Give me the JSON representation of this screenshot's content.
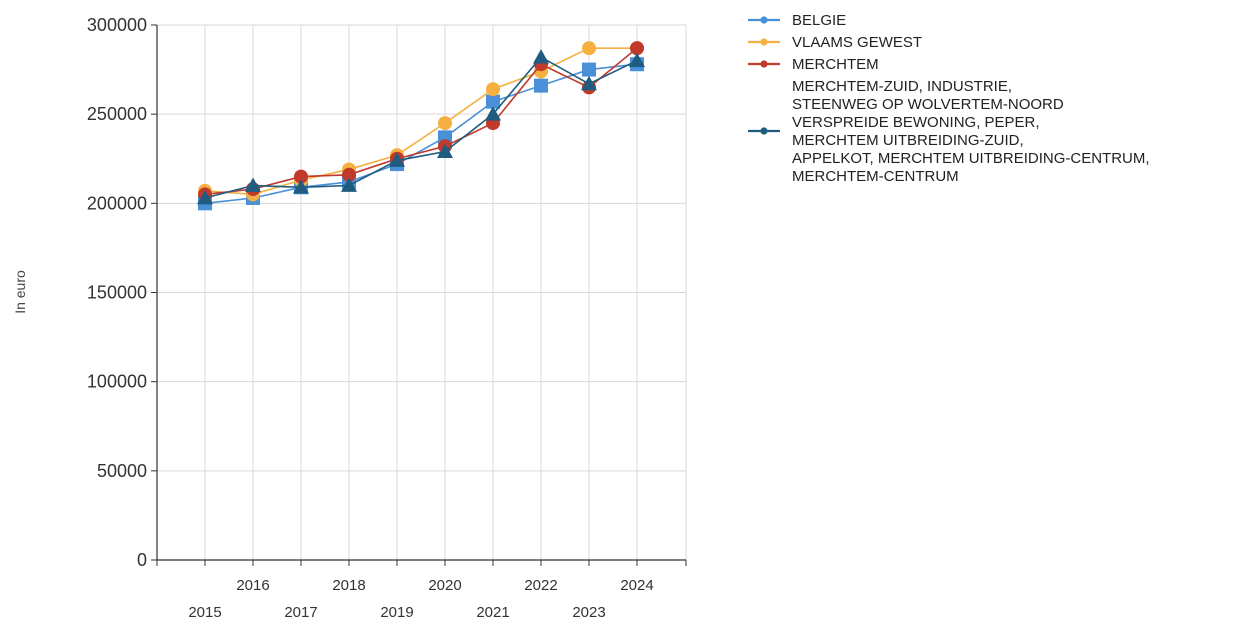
{
  "chart_data": {
    "type": "line",
    "ylabel": "In euro",
    "ylim": [
      0,
      300000
    ],
    "yticks": [
      "0",
      "50000",
      "100000",
      "150000",
      "200000",
      "250000",
      "300000"
    ],
    "x": [
      "2015",
      "2016",
      "2017",
      "2018",
      "2019",
      "2020",
      "2021",
      "2022",
      "2023",
      "2024"
    ],
    "legend_position": "top-right",
    "grid": true,
    "series": [
      {
        "name": "BELGIE",
        "color": "#4a90d9",
        "marker": "square",
        "values": [
          200000,
          203000,
          209000,
          212000,
          222000,
          237000,
          257000,
          266000,
          275000,
          278000
        ]
      },
      {
        "name": "VLAAMS GEWEST",
        "color": "#f5b041",
        "marker": "circle",
        "values": [
          207000,
          205000,
          213000,
          219000,
          227000,
          245000,
          264000,
          274000,
          287000,
          287000
        ]
      },
      {
        "name": "MERCHTEM",
        "color": "#c0392b",
        "marker": "circle",
        "values": [
          205000,
          208000,
          215000,
          216000,
          225000,
          232000,
          245000,
          278000,
          265000,
          287000
        ]
      },
      {
        "name": "MERCHTEM-ZUID, INDUSTRIE, STEENWEG OP WOLVERTEM-NOORD VERSPREIDE BEWONING, PEPER, MERCHTEM UITBREIDING-ZUID, APPELKOT, MERCHTEM UITBREIDING-CENTRUM, MERCHTEM-CENTRUM",
        "name_lines": [
          "MERCHTEM-ZUID, INDUSTRIE,",
          "STEENWEG OP WOLVERTEM-NOORD",
          "VERSPREIDE BEWONING, PEPER,",
          "MERCHTEM UITBREIDING-ZUID,",
          "APPELKOT, MERCHTEM UITBREIDING-CENTRUM,",
          "MERCHTEM-CENTRUM"
        ],
        "color": "#1f5c80",
        "marker": "triangle",
        "values": [
          203000,
          210000,
          209000,
          210000,
          224000,
          229000,
          250000,
          282000,
          267000,
          280000
        ]
      }
    ]
  }
}
